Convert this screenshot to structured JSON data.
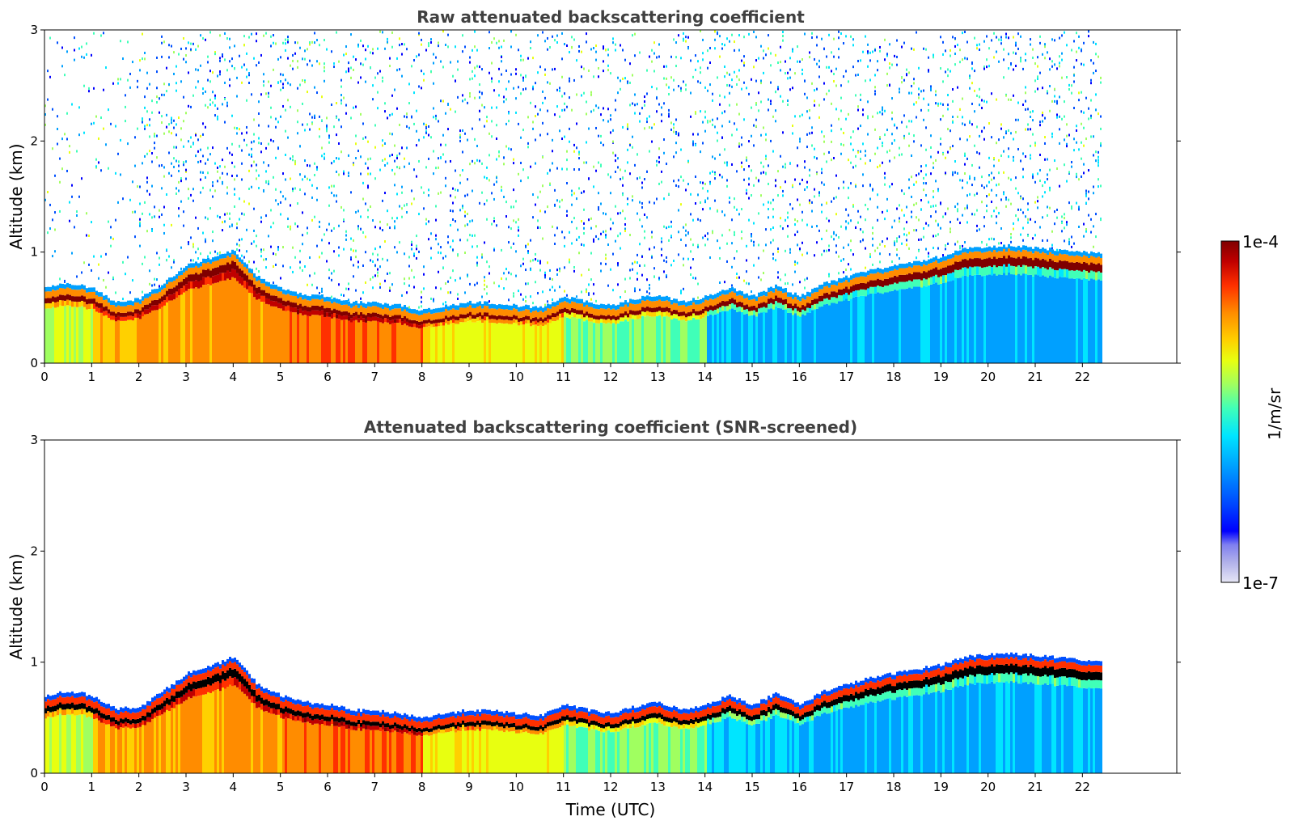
{
  "chart_data": [
    {
      "type": "heatmap",
      "title": "Raw attenuated backscattering coefficient",
      "xlabel": "",
      "ylabel": "Altitude (km)",
      "xlim": [
        0,
        24
      ],
      "ylim": [
        0,
        3
      ],
      "x_ticks": [
        "0",
        "1",
        "2",
        "3",
        "4",
        "5",
        "6",
        "7",
        "8",
        "9",
        "10",
        "11",
        "12",
        "13",
        "14",
        "15",
        "16",
        "17",
        "18",
        "19",
        "20",
        "21",
        "22"
      ],
      "y_ticks": [
        "0",
        "1",
        "2",
        "3"
      ],
      "data_end_time": 22.45,
      "aerosol_layer_top_km": [
        [
          0,
          0.58
        ],
        [
          0.5,
          0.62
        ],
        [
          1,
          0.58
        ],
        [
          1.5,
          0.45
        ],
        [
          2,
          0.48
        ],
        [
          2.5,
          0.62
        ],
        [
          3,
          0.78
        ],
        [
          3.5,
          0.85
        ],
        [
          4,
          0.92
        ],
        [
          4.5,
          0.68
        ],
        [
          5,
          0.58
        ],
        [
          5.5,
          0.52
        ],
        [
          6,
          0.5
        ],
        [
          6.5,
          0.45
        ],
        [
          7,
          0.44
        ],
        [
          7.5,
          0.42
        ],
        [
          8,
          0.38
        ],
        [
          8.5,
          0.42
        ],
        [
          9,
          0.45
        ],
        [
          9.5,
          0.44
        ],
        [
          10,
          0.42
        ],
        [
          10.5,
          0.4
        ],
        [
          11,
          0.5
        ],
        [
          11.5,
          0.45
        ],
        [
          12,
          0.42
        ],
        [
          12.5,
          0.48
        ],
        [
          13,
          0.52
        ],
        [
          13.5,
          0.45
        ],
        [
          14,
          0.5
        ],
        [
          14.5,
          0.58
        ],
        [
          15,
          0.5
        ],
        [
          15.5,
          0.6
        ],
        [
          16,
          0.5
        ],
        [
          16.5,
          0.62
        ],
        [
          17,
          0.68
        ],
        [
          17.5,
          0.74
        ],
        [
          18,
          0.78
        ],
        [
          18.5,
          0.82
        ],
        [
          19,
          0.86
        ],
        [
          19.5,
          0.93
        ],
        [
          20,
          0.95
        ],
        [
          20.5,
          0.96
        ],
        [
          21,
          0.94
        ],
        [
          21.5,
          0.92
        ],
        [
          22,
          0.9
        ],
        [
          22.45,
          0.88
        ]
      ],
      "colorbar": {
        "min_label": "1e-7",
        "max_label": "1e-4",
        "label": "1/m/sr",
        "scale": "log"
      }
    },
    {
      "type": "heatmap",
      "title": "Attenuated backscattering coefficient (SNR-screened)",
      "xlabel": "Time (UTC)",
      "ylabel": "Altitude (km)",
      "xlim": [
        0,
        24
      ],
      "ylim": [
        0,
        3
      ],
      "x_ticks": [
        "0",
        "1",
        "2",
        "3",
        "4",
        "5",
        "6",
        "7",
        "8",
        "9",
        "10",
        "11",
        "12",
        "13",
        "14",
        "15",
        "16",
        "17",
        "18",
        "19",
        "20",
        "21",
        "22"
      ],
      "y_ticks": [
        "0",
        "1",
        "2",
        "3"
      ],
      "data_end_time": 22.45,
      "aerosol_layer_top_km": [
        [
          0,
          0.6
        ],
        [
          0.5,
          0.64
        ],
        [
          1,
          0.6
        ],
        [
          1.5,
          0.48
        ],
        [
          2,
          0.5
        ],
        [
          2.5,
          0.64
        ],
        [
          3,
          0.8
        ],
        [
          3.5,
          0.86
        ],
        [
          4,
          0.95
        ],
        [
          4.5,
          0.7
        ],
        [
          5,
          0.6
        ],
        [
          5.5,
          0.54
        ],
        [
          6,
          0.52
        ],
        [
          6.5,
          0.47
        ],
        [
          7,
          0.46
        ],
        [
          7.5,
          0.44
        ],
        [
          8,
          0.4
        ],
        [
          8.5,
          0.44
        ],
        [
          9,
          0.47
        ],
        [
          9.5,
          0.46
        ],
        [
          10,
          0.44
        ],
        [
          10.5,
          0.42
        ],
        [
          11,
          0.52
        ],
        [
          11.5,
          0.47
        ],
        [
          12,
          0.44
        ],
        [
          12.5,
          0.5
        ],
        [
          13,
          0.54
        ],
        [
          13.5,
          0.47
        ],
        [
          14,
          0.52
        ],
        [
          14.5,
          0.6
        ],
        [
          15,
          0.52
        ],
        [
          15.5,
          0.62
        ],
        [
          16,
          0.52
        ],
        [
          16.5,
          0.64
        ],
        [
          17,
          0.7
        ],
        [
          17.5,
          0.76
        ],
        [
          18,
          0.8
        ],
        [
          18.5,
          0.84
        ],
        [
          19,
          0.88
        ],
        [
          19.5,
          0.95
        ],
        [
          20,
          0.97
        ],
        [
          20.5,
          0.98
        ],
        [
          21,
          0.96
        ],
        [
          21.5,
          0.94
        ],
        [
          22,
          0.92
        ],
        [
          22.45,
          0.9
        ]
      ]
    }
  ],
  "colors": {
    "title_gray": "#404040",
    "colormap": [
      "#e6e6f5",
      "#b0b0ea",
      "#7f7ff0",
      "#0000ff",
      "#0050ff",
      "#00a0ff",
      "#00e5ff",
      "#40ffb8",
      "#a0ff60",
      "#e8ff10",
      "#ffd000",
      "#ff8c00",
      "#ff3000",
      "#c00000",
      "#7f0000"
    ]
  }
}
